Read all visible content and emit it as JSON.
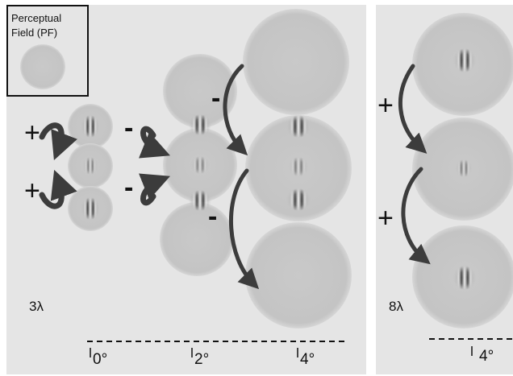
{
  "legend": {
    "label_line1": "Perceptual",
    "label_line2": "Field (PF)"
  },
  "left_panel": {
    "wavelength_label": "3λ",
    "signs": {
      "upper_left": "+",
      "lower_left": "+",
      "upper_mid": "-",
      "lower_mid": "-",
      "upper_right": "-",
      "lower_right": "-"
    },
    "ticks": [
      "0°",
      "2°",
      "4°"
    ]
  },
  "right_panel": {
    "wavelength_label": "8λ",
    "signs": {
      "upper": "+",
      "lower": "+"
    },
    "ticks": [
      "4°"
    ]
  },
  "colors": {
    "panel_bg": "#e4e4e4",
    "pf_disc": "#c8c8c8",
    "arrow": "#3c3c3c",
    "text": "#111111"
  }
}
